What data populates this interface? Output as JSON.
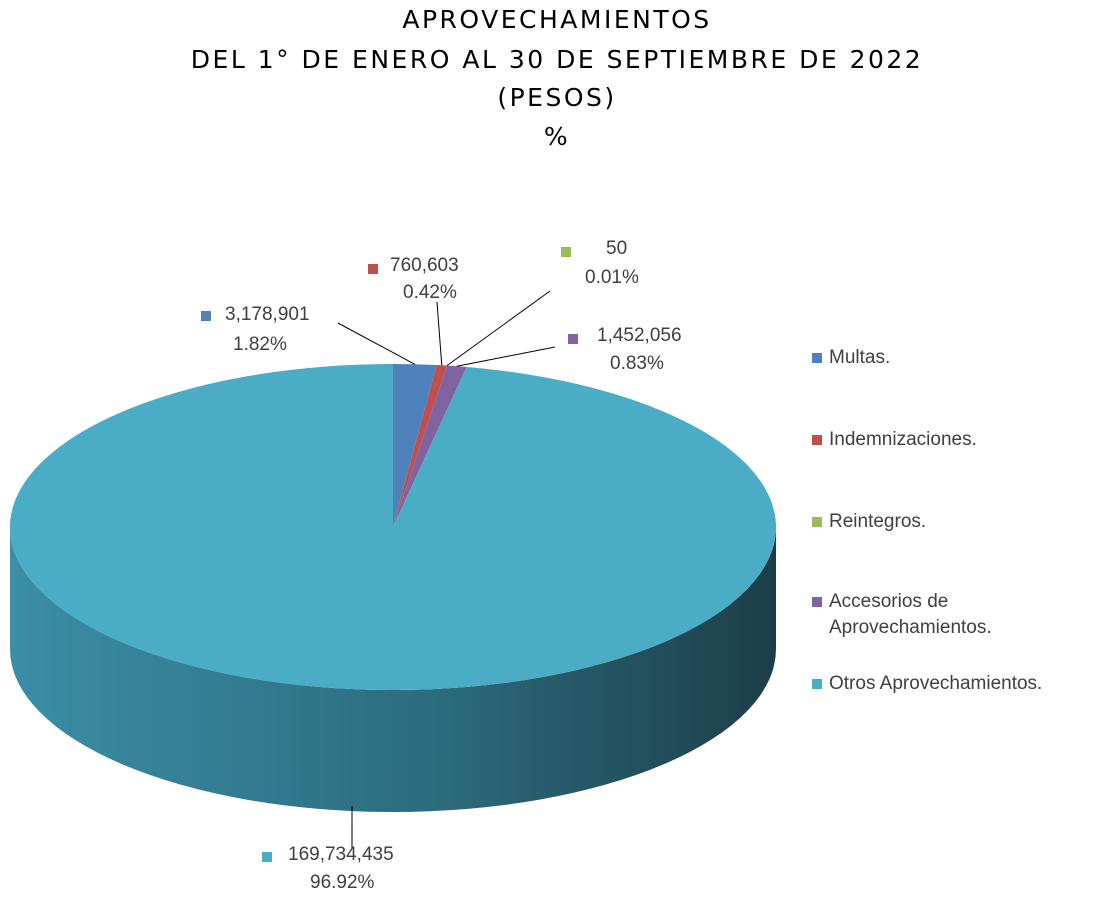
{
  "chart_data": {
    "type": "pie3d",
    "title": [
      "APROVECHAMIENTOS",
      "DEL 1° DE ENERO AL 30 DE SEPTIEMBRE DE 2022",
      "(PESOS)",
      "%"
    ],
    "categories": [
      "Multas.",
      "Indemnizaciones.",
      "Reintegros.",
      "Accesorios de Aprovechamientos.",
      "Otros Aprovechamientos."
    ],
    "values": [
      3178901,
      760603,
      50,
      1452056,
      169734435
    ],
    "value_labels": [
      "3,178,901",
      "760,603",
      "50",
      "1,452,056",
      "169,734,435"
    ],
    "percentages": [
      1.82,
      0.42,
      0.01,
      0.83,
      96.92
    ],
    "percent_labels": [
      "1.82%",
      "0.42%",
      "0.01%",
      "0.83%",
      "96.92%"
    ],
    "colors": [
      "#4f81bd",
      "#c0504d",
      "#9bbb59",
      "#8064a2",
      "#4bacc6"
    ],
    "legend": "right"
  }
}
